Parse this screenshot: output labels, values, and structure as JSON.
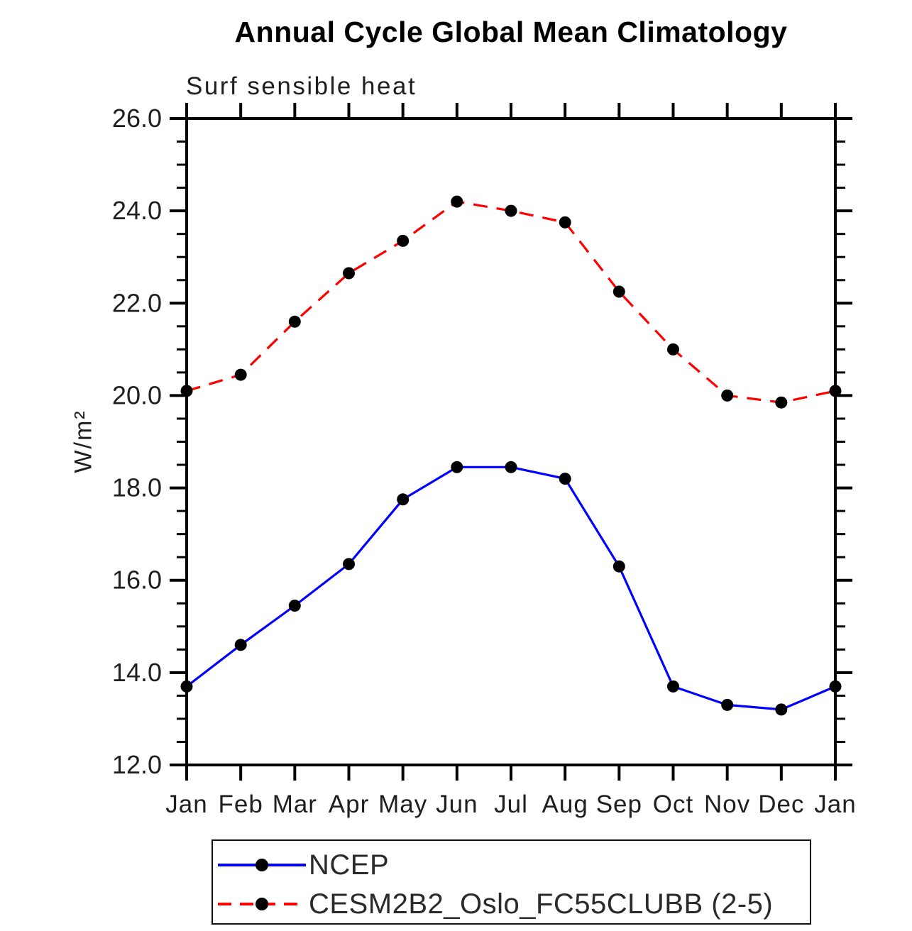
{
  "title": "Annual Cycle Global Mean Climatology",
  "subtitle": "Surf sensible heat",
  "ylabel": "W/m²",
  "chart_data": {
    "type": "line",
    "x_categories": [
      "Jan",
      "Feb",
      "Mar",
      "Apr",
      "May",
      "Jun",
      "Jul",
      "Aug",
      "Sep",
      "Oct",
      "Nov",
      "Dec",
      "Jan"
    ],
    "ylim": [
      12.0,
      26.0
    ],
    "ytick_major_interval": 2.0,
    "ytick_minor_interval": 0.5,
    "ytick_labels": [
      "12.0",
      "14.0",
      "16.0",
      "18.0",
      "20.0",
      "22.0",
      "24.0",
      "26.0"
    ],
    "grid": false,
    "legend_position": "bottom",
    "frame_color": "#000000",
    "marker_color": "#000000",
    "series": [
      {
        "name": "NCEP",
        "color": "#0000ff",
        "style": "solid",
        "marker": "circle",
        "values": [
          13.7,
          14.6,
          15.45,
          16.35,
          17.75,
          18.45,
          18.45,
          18.2,
          16.3,
          13.7,
          13.3,
          13.2,
          13.7
        ]
      },
      {
        "name": "CESM2B2_Oslo_FC55CLUBB (2-5)",
        "color": "#ff0000",
        "style": "dashed",
        "marker": "circle",
        "values": [
          20.1,
          20.45,
          21.6,
          22.65,
          23.35,
          24.2,
          24.0,
          23.75,
          22.25,
          21.0,
          20.0,
          19.85,
          20.1
        ]
      }
    ]
  }
}
